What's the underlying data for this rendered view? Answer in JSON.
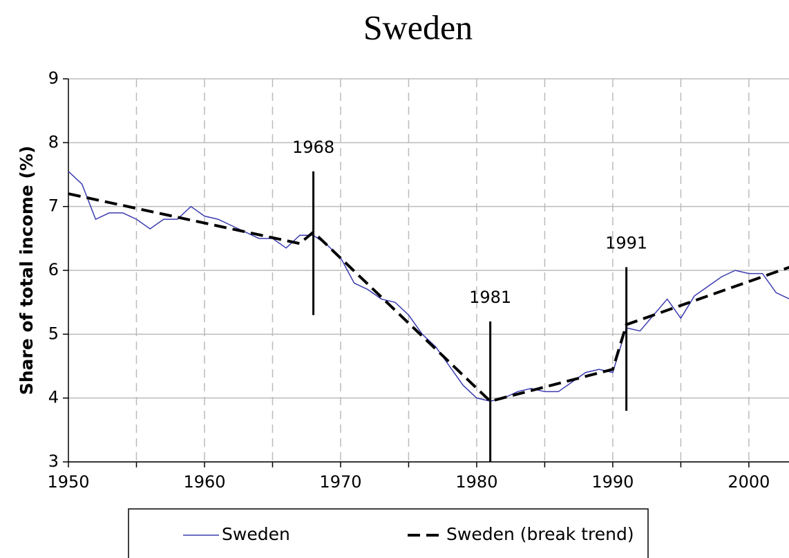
{
  "chart_data": {
    "type": "line",
    "title": "Sweden",
    "y_label": "Share of total income (%)",
    "xlim": [
      1950,
      2003
    ],
    "xticks": [
      1950,
      1960,
      1970,
      1980,
      1990,
      2000
    ],
    "x_minor_grid": [
      1955,
      1965,
      1975,
      1985,
      1995
    ],
    "ylim": [
      3,
      9
    ],
    "yticks": [
      3,
      4,
      5,
      6,
      7,
      8,
      9
    ],
    "grid": true,
    "legend": "bottom",
    "series": [
      {
        "name": "Sweden",
        "color": "#3b3bb0",
        "style": "solid",
        "x": [
          1950,
          1951,
          1952,
          1953,
          1954,
          1955,
          1956,
          1957,
          1958,
          1959,
          1960,
          1961,
          1962,
          1963,
          1964,
          1965,
          1966,
          1967,
          1968,
          1969,
          1970,
          1971,
          1972,
          1973,
          1974,
          1975,
          1976,
          1977,
          1978,
          1979,
          1980,
          1981,
          1982,
          1983,
          1984,
          1985,
          1986,
          1987,
          1988,
          1989,
          1990,
          1991,
          1992,
          1993,
          1994,
          1995,
          1996,
          1997,
          1998,
          1999,
          2000,
          2001,
          2002,
          2003
        ],
        "values": [
          7.55,
          7.35,
          6.8,
          6.9,
          6.9,
          6.8,
          6.65,
          6.8,
          6.8,
          7.0,
          6.85,
          6.8,
          6.7,
          6.6,
          6.5,
          6.5,
          6.35,
          6.55,
          6.55,
          6.4,
          6.2,
          5.8,
          5.7,
          5.55,
          5.5,
          5.3,
          5.0,
          4.8,
          4.5,
          4.2,
          4.0,
          3.95,
          4.0,
          4.1,
          4.15,
          4.1,
          4.1,
          4.25,
          4.4,
          4.45,
          4.4,
          5.1,
          5.05,
          5.3,
          5.55,
          5.25,
          5.6,
          5.75,
          5.9,
          6.0,
          5.95,
          5.95,
          5.65,
          5.55
        ]
      },
      {
        "name": "Sweden (break trend)",
        "color": "#000000",
        "style": "dashed",
        "x": [
          1950,
          1967,
          1968,
          1981,
          1990,
          1991,
          2003
        ],
        "values": [
          7.2,
          6.42,
          6.6,
          3.95,
          4.45,
          5.15,
          6.05
        ]
      }
    ],
    "annotations": [
      {
        "text": "1968",
        "x": 1968,
        "y": [
          5.3,
          7.55
        ]
      },
      {
        "text": "1981",
        "x": 1981,
        "y": [
          3.0,
          5.2
        ]
      },
      {
        "text": "1991",
        "x": 1991,
        "y": [
          3.8,
          6.05
        ]
      }
    ]
  }
}
